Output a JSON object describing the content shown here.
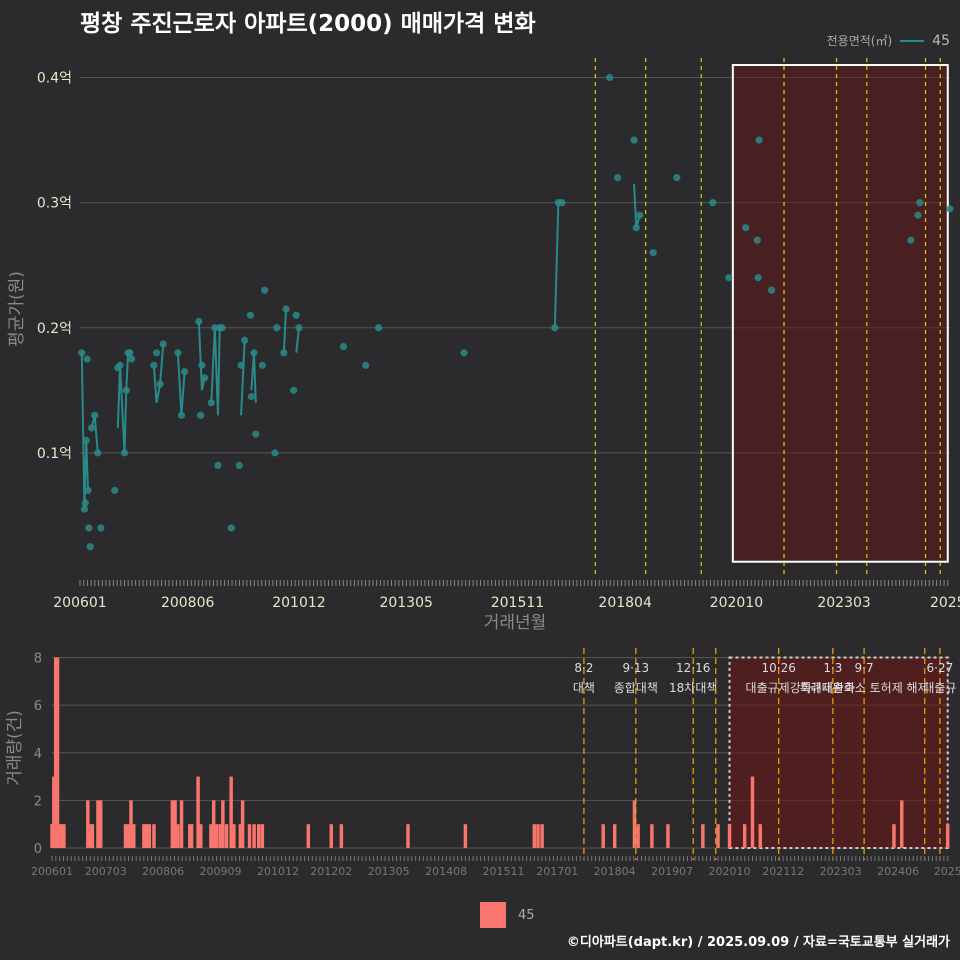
{
  "title": "평창 주진근로자 아파트(2000) 매매가격 변화",
  "legend": {
    "title": "전용면적(㎡)",
    "item": "45",
    "line_color": "#2a8a8a",
    "bar_color": "#f8766d"
  },
  "caption": "©디아파트(dapt.kr) / 2025.09.09 / 자료=국토교통부 실거래가",
  "chart_data": [
    {
      "type": "scatter",
      "xlabel": "거래년월",
      "ylabel": "평균가(원)",
      "x_tick_labels": [
        "200601",
        "200806",
        "201012",
        "201305",
        "201511",
        "201804",
        "202010",
        "202303",
        "2025"
      ],
      "x_tick_values": [
        2006.0,
        2008.42,
        2010.92,
        2013.33,
        2015.83,
        2018.25,
        2020.75,
        2023.17,
        2025.5
      ],
      "y_tick_labels": [
        "0.1억",
        "0.2억",
        "0.3억",
        "0.4억"
      ],
      "y_tick_values": [
        0.1,
        0.2,
        0.3,
        0.4
      ],
      "xlim": [
        2006.0,
        2025.55
      ],
      "ylim": [
        0.0,
        0.43
      ],
      "grid": true,
      "highlight_box": [
        2020.67,
        2025.5
      ],
      "event_lines": [
        2017.58,
        2018.71,
        2019.96,
        2021.82,
        2023.0,
        2023.68,
        2025.0,
        2025.33
      ],
      "series": [
        {
          "name": "45",
          "color": "#2a8a8a",
          "points": [
            [
              2006.04,
              0.18
            ],
            [
              2006.1,
              0.055
            ],
            [
              2006.12,
              0.06
            ],
            [
              2006.14,
              0.11
            ],
            [
              2006.16,
              0.175
            ],
            [
              2006.18,
              0.07
            ],
            [
              2006.2,
              0.04
            ],
            [
              2006.23,
              0.025
            ],
            [
              2006.26,
              0.12
            ],
            [
              2006.33,
              0.13
            ],
            [
              2006.4,
              0.1
            ],
            [
              2006.47,
              0.04
            ],
            [
              2006.78,
              0.07
            ],
            [
              2006.85,
              0.168
            ],
            [
              2006.9,
              0.17
            ],
            [
              2007.0,
              0.1
            ],
            [
              2007.04,
              0.15
            ],
            [
              2007.08,
              0.18
            ],
            [
              2007.12,
              0.18
            ],
            [
              2007.16,
              0.175
            ],
            [
              2007.66,
              0.17
            ],
            [
              2007.72,
              0.18
            ],
            [
              2007.8,
              0.155
            ],
            [
              2007.87,
              0.187
            ],
            [
              2008.2,
              0.18
            ],
            [
              2008.28,
              0.13
            ],
            [
              2008.35,
              0.165
            ],
            [
              2008.67,
              0.205
            ],
            [
              2008.71,
              0.13
            ],
            [
              2008.74,
              0.17
            ],
            [
              2008.8,
              0.16
            ],
            [
              2008.95,
              0.14
            ],
            [
              2009.03,
              0.2
            ],
            [
              2009.1,
              0.09
            ],
            [
              2009.14,
              0.2
            ],
            [
              2009.19,
              0.2
            ],
            [
              2009.4,
              0.04
            ],
            [
              2009.58,
              0.09
            ],
            [
              2009.62,
              0.17
            ],
            [
              2009.7,
              0.19
            ],
            [
              2009.83,
              0.21
            ],
            [
              2009.85,
              0.145
            ],
            [
              2009.91,
              0.18
            ],
            [
              2009.95,
              0.115
            ],
            [
              2010.1,
              0.17
            ],
            [
              2010.15,
              0.23
            ],
            [
              2010.38,
              0.1
            ],
            [
              2010.42,
              0.2
            ],
            [
              2010.58,
              0.18
            ],
            [
              2010.63,
              0.215
            ],
            [
              2010.8,
              0.15
            ],
            [
              2010.86,
              0.21
            ],
            [
              2010.92,
              0.2
            ],
            [
              2011.92,
              0.185
            ],
            [
              2012.42,
              0.17
            ],
            [
              2012.71,
              0.2
            ],
            [
              2014.63,
              0.18
            ],
            [
              2016.67,
              0.2
            ],
            [
              2016.75,
              0.3
            ],
            [
              2016.83,
              0.3
            ],
            [
              2017.9,
              0.4
            ],
            [
              2018.08,
              0.32
            ],
            [
              2018.45,
              0.35
            ],
            [
              2018.5,
              0.28
            ],
            [
              2018.58,
              0.29
            ],
            [
              2018.88,
              0.26
            ],
            [
              2019.41,
              0.32
            ],
            [
              2020.22,
              0.3
            ],
            [
              2020.58,
              0.24
            ],
            [
              2020.96,
              0.28
            ],
            [
              2021.22,
              0.27
            ],
            [
              2021.24,
              0.24
            ],
            [
              2021.26,
              0.35
            ],
            [
              2021.54,
              0.23
            ],
            [
              2024.67,
              0.27
            ],
            [
              2024.83,
              0.29
            ],
            [
              2024.87,
              0.3
            ],
            [
              2025.55,
              0.295
            ]
          ],
          "line_segments": [
            [
              [
                2006.04,
                0.18
              ],
              [
                2006.1,
                0.055
              ],
              [
                2006.14,
                0.11
              ],
              [
                2006.18,
                0.07
              ]
            ],
            [
              [
                2006.26,
                0.12
              ],
              [
                2006.33,
                0.13
              ],
              [
                2006.4,
                0.1
              ]
            ],
            [
              [
                2006.85,
                0.12
              ],
              [
                2006.9,
                0.17
              ],
              [
                2007.0,
                0.1
              ],
              [
                2007.04,
                0.15
              ],
              [
                2007.08,
                0.18
              ],
              [
                2007.12,
                0.18
              ],
              [
                2007.16,
                0.175
              ]
            ],
            [
              [
                2007.66,
                0.17
              ],
              [
                2007.72,
                0.14
              ],
              [
                2007.8,
                0.155
              ],
              [
                2007.87,
                0.187
              ]
            ],
            [
              [
                2008.2,
                0.18
              ],
              [
                2008.28,
                0.13
              ],
              [
                2008.35,
                0.165
              ]
            ],
            [
              [
                2008.67,
                0.205
              ],
              [
                2008.74,
                0.15
              ],
              [
                2008.8,
                0.16
              ]
            ],
            [
              [
                2008.95,
                0.14
              ],
              [
                2009.03,
                0.2
              ],
              [
                2009.1,
                0.13
              ],
              [
                2009.14,
                0.2
              ],
              [
                2009.19,
                0.2
              ]
            ],
            [
              [
                2009.62,
                0.13
              ],
              [
                2009.7,
                0.19
              ]
            ],
            [
              [
                2009.85,
                0.15
              ],
              [
                2009.91,
                0.18
              ],
              [
                2009.95,
                0.14
              ]
            ],
            [
              [
                2010.58,
                0.18
              ],
              [
                2010.63,
                0.215
              ]
            ],
            [
              [
                2010.86,
                0.18
              ],
              [
                2010.92,
                0.2
              ]
            ],
            [
              [
                2016.67,
                0.2
              ],
              [
                2016.75,
                0.3
              ],
              [
                2016.83,
                0.3
              ]
            ],
            [
              [
                2018.45,
                0.315
              ],
              [
                2018.5,
                0.28
              ],
              [
                2018.58,
                0.29
              ]
            ]
          ]
        }
      ]
    },
    {
      "type": "bar",
      "ylabel": "거래량(건)",
      "x_tick_labels": [
        "200601",
        "200703",
        "200806",
        "200909",
        "201012",
        "201202",
        "201305",
        "201408",
        "201511",
        "201701",
        "201804",
        "201907",
        "202010",
        "202112",
        "202303",
        "202406",
        "2025"
      ],
      "x_tick_values": [
        2006.0,
        2007.17,
        2008.42,
        2009.67,
        2010.92,
        2012.08,
        2013.33,
        2014.58,
        2015.83,
        2017.0,
        2018.25,
        2019.5,
        2020.75,
        2021.92,
        2023.17,
        2024.42,
        2025.5
      ],
      "y_tick_labels": [
        "0",
        "2",
        "4",
        "6",
        "8"
      ],
      "y_tick_values": [
        0,
        2,
        4,
        6,
        8
      ],
      "xlim": [
        2006.0,
        2025.55
      ],
      "ylim": [
        0,
        8.4
      ],
      "highlight_box": [
        2020.75,
        2025.5
      ],
      "bars": [
        [
          2006.0,
          1
        ],
        [
          2006.04,
          3
        ],
        [
          2006.08,
          8
        ],
        [
          2006.12,
          8
        ],
        [
          2006.16,
          1
        ],
        [
          2006.22,
          1
        ],
        [
          2006.26,
          1
        ],
        [
          2006.78,
          2
        ],
        [
          2006.84,
          1
        ],
        [
          2006.88,
          1
        ],
        [
          2007.0,
          2
        ],
        [
          2007.06,
          2
        ],
        [
          2007.6,
          1
        ],
        [
          2007.66,
          1
        ],
        [
          2007.72,
          2
        ],
        [
          2007.78,
          1
        ],
        [
          2008.0,
          1
        ],
        [
          2008.06,
          1
        ],
        [
          2008.12,
          1
        ],
        [
          2008.22,
          1
        ],
        [
          2008.62,
          2
        ],
        [
          2008.68,
          2
        ],
        [
          2008.74,
          1
        ],
        [
          2008.82,
          2
        ],
        [
          2009.0,
          1
        ],
        [
          2009.04,
          1
        ],
        [
          2009.18,
          3
        ],
        [
          2009.24,
          1
        ],
        [
          2009.46,
          1
        ],
        [
          2009.52,
          2
        ],
        [
          2009.58,
          1
        ],
        [
          2009.66,
          1
        ],
        [
          2009.72,
          2
        ],
        [
          2009.8,
          1
        ],
        [
          2009.9,
          3
        ],
        [
          2009.96,
          1
        ],
        [
          2010.1,
          1
        ],
        [
          2010.15,
          2
        ],
        [
          2010.3,
          1
        ],
        [
          2010.4,
          1
        ],
        [
          2010.5,
          1
        ],
        [
          2010.58,
          1
        ],
        [
          2011.58,
          1
        ],
        [
          2012.08,
          1
        ],
        [
          2012.3,
          1
        ],
        [
          2013.75,
          1
        ],
        [
          2015.0,
          1
        ],
        [
          2016.5,
          1
        ],
        [
          2016.58,
          1
        ],
        [
          2016.67,
          1
        ],
        [
          2018.0,
          1
        ],
        [
          2018.25,
          1
        ],
        [
          2018.68,
          2
        ],
        [
          2018.76,
          1
        ],
        [
          2019.06,
          1
        ],
        [
          2019.41,
          1
        ],
        [
          2020.17,
          1
        ],
        [
          2020.5,
          1
        ],
        [
          2020.75,
          1
        ],
        [
          2021.08,
          1
        ],
        [
          2021.25,
          3
        ],
        [
          2021.42,
          1
        ],
        [
          2024.33,
          1
        ],
        [
          2024.5,
          2
        ],
        [
          2025.5,
          1
        ]
      ],
      "event_lines": [
        {
          "x": 2017.58,
          "date": "8·2",
          "label": "대책"
        },
        {
          "x": 2018.71,
          "date": "9·13",
          "label": "종합대책"
        },
        {
          "x": 2019.96,
          "date": "12·16",
          "label": "18차대책"
        },
        {
          "x": 2020.45,
          "date": "",
          "label": ""
        },
        {
          "x": 2021.82,
          "date": "10·26",
          "label": "대출규제강화"
        },
        {
          "x": 2023.0,
          "date": "1·3",
          "label": "규제완화"
        },
        {
          "x": 2023.68,
          "date": "9·7",
          "label": "특례대출축소 토허제 해제"
        },
        {
          "x": 2025.0,
          "date": "",
          "label": ""
        },
        {
          "x": 2025.33,
          "date": "6·27",
          "label": "대출규"
        }
      ]
    }
  ]
}
